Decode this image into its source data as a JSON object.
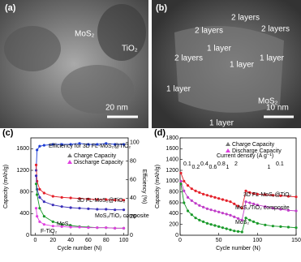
{
  "panels": [
    {
      "label": "(a)",
      "texts": [
        "MoS₂",
        "TiO₂"
      ],
      "scale": "20 nm"
    },
    {
      "label": "(b)",
      "texts": [
        "2 layers",
        "2 layers",
        "2 layers",
        "2 layers",
        "1 layer",
        "1 layer",
        "1 layer",
        "1 layer",
        "1 layer",
        "MoS₂"
      ],
      "scale": "10 nm"
    }
  ],
  "chart_data": [
    {
      "type": "line",
      "label": "(c)",
      "xlabel": "Cycle number (N)",
      "ylabel": "Capacity (mAh/g)",
      "y2label": "Efficiency (%)",
      "xlim": [
        -5,
        105
      ],
      "xticks": [
        0,
        20,
        40,
        60,
        80,
        100
      ],
      "ylim": [
        0,
        1800
      ],
      "yticks": [
        0,
        400,
        800,
        1200,
        1600
      ],
      "y2lim": [
        0,
        105
      ],
      "y2ticks": [
        0,
        20,
        40,
        60,
        80,
        100
      ],
      "legend": [
        "Charge Capacity",
        "Discharge Capacity"
      ],
      "x": [
        1,
        2,
        5,
        10,
        20,
        30,
        40,
        50,
        60,
        70,
        80,
        90,
        100
      ],
      "series": [
        {
          "name": "Efficiency for 3D FL-MoS₂@TiO₂",
          "color": "#1f3fd6",
          "axis": "y2",
          "values": [
            70,
            92,
            96,
            97,
            98,
            98,
            98,
            99,
            98,
            98,
            99,
            98,
            98
          ]
        },
        {
          "name": "3D FL-MoS₂@TiO₂",
          "color": "#e4202a",
          "values": [
            1300,
            1000,
            850,
            780,
            720,
            700,
            690,
            680,
            670,
            660,
            660,
            650,
            650
          ]
        },
        {
          "name": "MoS₂/TiO₂ composite",
          "color": "#3a2fb8",
          "values": [
            1100,
            850,
            700,
            620,
            560,
            530,
            510,
            500,
            490,
            480,
            480,
            470,
            470
          ]
        },
        {
          "name": "MoS₂",
          "color": "#1a9a2a",
          "values": [
            950,
            750,
            500,
            350,
            250,
            200,
            180,
            160,
            150,
            140,
            140,
            130,
            130
          ]
        },
        {
          "name": "F-TiO₂",
          "color": "#e040e0",
          "values": [
            500,
            350,
            250,
            200,
            170,
            160,
            150,
            150,
            140,
            140,
            140,
            130,
            130
          ]
        }
      ]
    },
    {
      "type": "line",
      "label": "(d)",
      "xlabel": "Cycle number (N)",
      "ylabel": "Capacity (mAh/g)",
      "xlim": [
        0,
        150
      ],
      "xticks": [
        0,
        50,
        100,
        150
      ],
      "ylim": [
        0,
        1800
      ],
      "yticks": [
        0,
        200,
        400,
        600,
        800,
        1000,
        1200,
        1400,
        1600,
        1800
      ],
      "legend": [
        "Charge Capacity",
        "Discharge Capacity"
      ],
      "rate_title": "Current density (A g⁻¹)",
      "rate_labels": [
        "0.1",
        "0.2",
        "0.4",
        "0.6",
        "0.8",
        "1",
        "2",
        "1",
        "0.1"
      ],
      "x": [
        1,
        5,
        10,
        15,
        20,
        25,
        30,
        35,
        40,
        45,
        50,
        55,
        60,
        65,
        70,
        75,
        80,
        85,
        90,
        95,
        100,
        110,
        120,
        130,
        140,
        150
      ],
      "series": [
        {
          "name": "3D FL-MoS₂@TiO₂",
          "color": "#e4202a",
          "values": [
            1150,
            1000,
            920,
            860,
            820,
            790,
            760,
            740,
            720,
            700,
            680,
            660,
            640,
            620,
            580,
            540,
            500,
            820,
            790,
            770,
            760,
            750,
            740,
            730,
            720,
            710
          ]
        },
        {
          "name": "MoS₂/TiO₂ composite",
          "color": "#c03cc8",
          "values": [
            1000,
            820,
            700,
            640,
            590,
            550,
            520,
            490,
            470,
            450,
            430,
            410,
            390,
            370,
            340,
            310,
            280,
            620,
            600,
            580,
            560,
            530,
            500,
            480,
            460,
            450
          ]
        },
        {
          "name": "MoS₂",
          "color": "#1a9a2a",
          "values": [
            950,
            600,
            450,
            380,
            320,
            280,
            250,
            220,
            200,
            180,
            160,
            140,
            120,
            100,
            80,
            70,
            60,
            320,
            280,
            250,
            220,
            190,
            170,
            160,
            150,
            140
          ]
        }
      ]
    }
  ]
}
